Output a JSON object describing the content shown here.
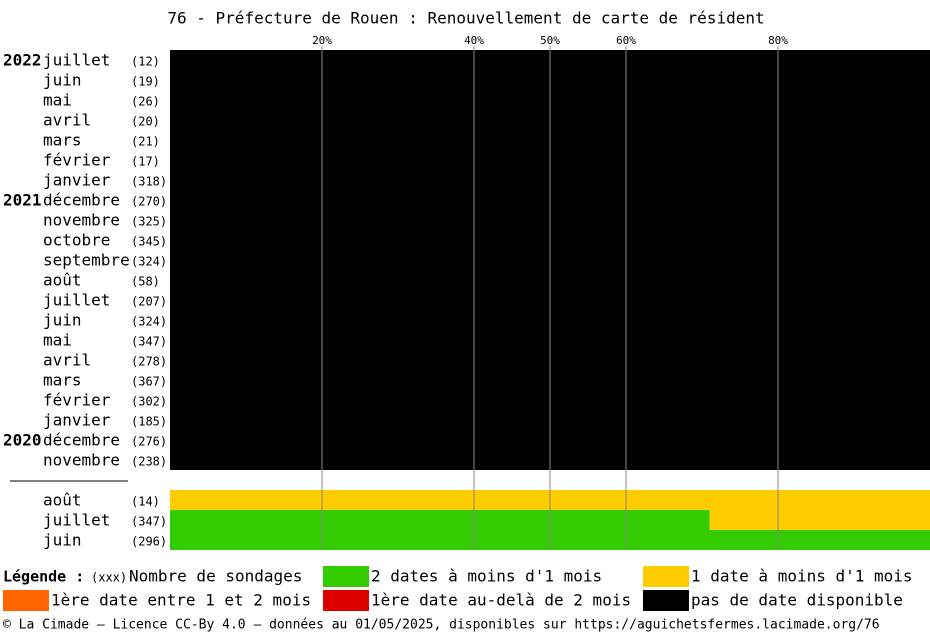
{
  "chart_data": {
    "type": "stacked-barh",
    "title": "76 - Préfecture de Rouen : Renouvellement de carte de résident",
    "categories": [
      "juillet",
      "juin",
      "mai",
      "avril",
      "mars",
      "février",
      "janvier",
      "décembre",
      "novembre",
      "octobre",
      "septembre",
      "août",
      "juillet",
      "juin",
      "mai",
      "avril",
      "mars",
      "février",
      "janvier",
      "décembre",
      "novembre",
      null,
      "août",
      "juillet",
      "juin"
    ],
    "years": [
      "2022",
      null,
      null,
      null,
      null,
      null,
      null,
      "2021",
      null,
      null,
      null,
      null,
      null,
      null,
      null,
      null,
      null,
      null,
      null,
      "2020",
      null,
      null,
      null,
      null,
      null
    ],
    "counts": [
      "(12)",
      "(19)",
      "(26)",
      "(20)",
      "(21)",
      "(17)",
      "(318)",
      "(270)",
      "(325)",
      "(345)",
      "(324)",
      "(58)",
      "(207)",
      "(324)",
      "(347)",
      "(278)",
      "(367)",
      "(302)",
      "(185)",
      "(276)",
      "(238)",
      null,
      "(14)",
      "(347)",
      "(296)"
    ],
    "series": [
      {
        "name": "2 dates à moins d'1 mois",
        "color": "#33cc00",
        "values": [
          0,
          0,
          0,
          0,
          0,
          0,
          0,
          0,
          0,
          0,
          0,
          0,
          0,
          0,
          0,
          0,
          0,
          0,
          0,
          0,
          0,
          null,
          0,
          71,
          100
        ]
      },
      {
        "name": "1 date à moins d'1 mois",
        "color": "#ffcc00",
        "values": [
          0,
          0,
          0,
          0,
          0,
          0,
          0,
          0,
          0,
          0,
          0,
          0,
          0,
          0,
          0,
          0,
          0,
          0,
          0,
          0,
          0,
          null,
          100,
          29,
          0
        ]
      },
      {
        "name": "1ère date entre 1 et 2 mois",
        "color": "#ff6600",
        "values": [
          0,
          0,
          0,
          0,
          0,
          0,
          0,
          0,
          0,
          0,
          0,
          0,
          0,
          0,
          0,
          0,
          0,
          0,
          0,
          0,
          0,
          null,
          0,
          0,
          0
        ]
      },
      {
        "name": "1ère date au-delà de 2 mois",
        "color": "#dd0000",
        "values": [
          0,
          0,
          0,
          0,
          0,
          0,
          0,
          0,
          0,
          0,
          0,
          0,
          0,
          0,
          0,
          0,
          0,
          0,
          0,
          0,
          0,
          null,
          0,
          0,
          0
        ]
      },
      {
        "name": "pas de date disponible",
        "color": "#000000",
        "values": [
          100,
          100,
          100,
          100,
          100,
          100,
          100,
          100,
          100,
          100,
          100,
          100,
          100,
          100,
          100,
          100,
          100,
          100,
          100,
          100,
          100,
          null,
          0,
          0,
          0
        ]
      }
    ],
    "xlim": [
      0,
      100
    ],
    "xticks": [
      {
        "value": 20,
        "label": "20%"
      },
      {
        "value": 40,
        "label": "40%"
      },
      {
        "value": 50,
        "label": "50%"
      },
      {
        "value": 60,
        "label": "60%"
      },
      {
        "value": 80,
        "label": "80%"
      }
    ],
    "grid": true,
    "legend_title": "Légende :",
    "count_legend_marker": "(xxx)",
    "count_legend_label": "Nombre de sondages",
    "footer": "© La Cimade — Licence CC-By 4.0 — données au 01/05/2025, disponibles sur https://aguichetsfermes.lacimade.org/76"
  }
}
